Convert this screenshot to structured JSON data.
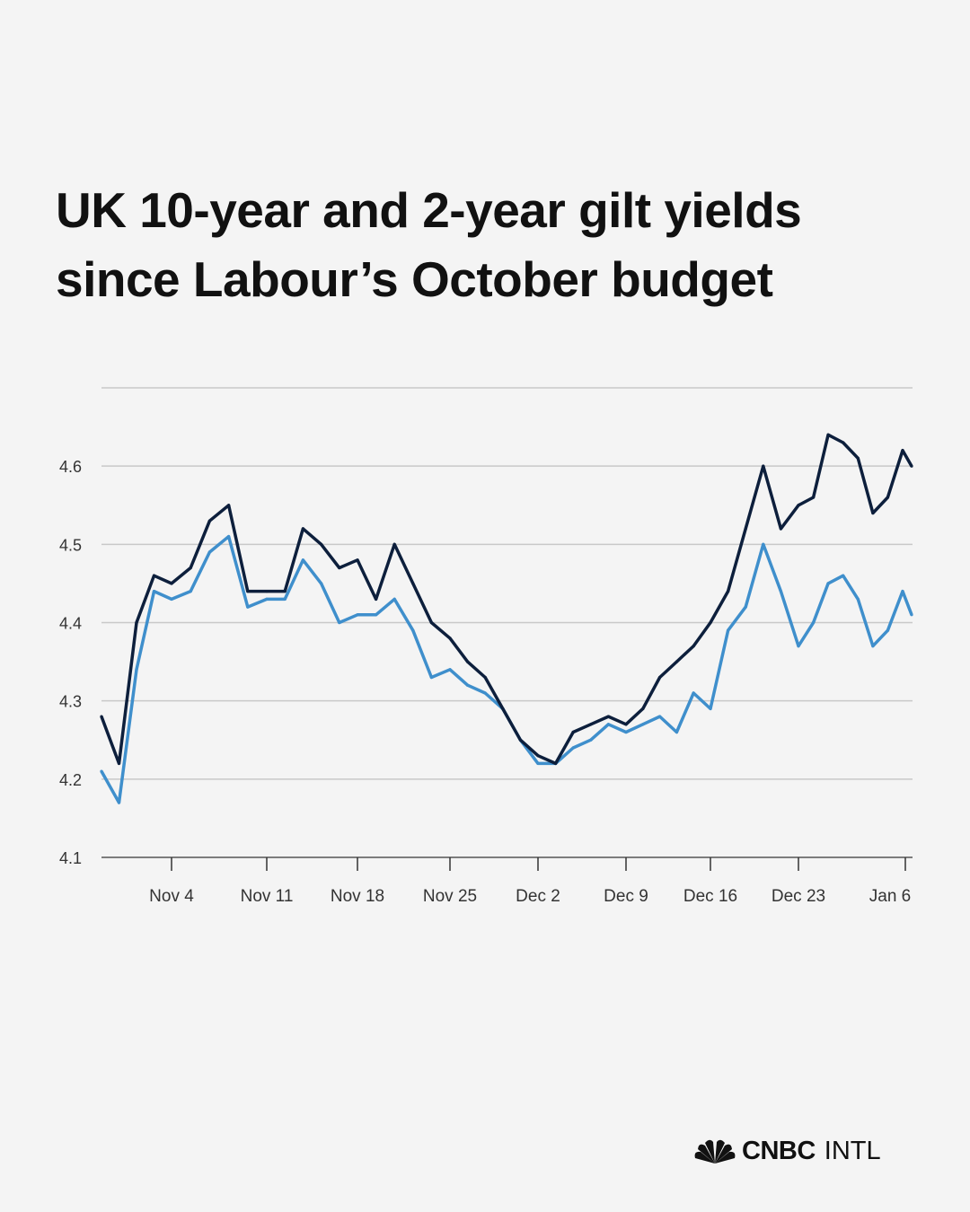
{
  "title": {
    "line1": "UK 10-year and 2-year gilt yields",
    "line2": "since Labour’s October budget"
  },
  "logo": {
    "brand": "CNBC",
    "suffix": "INTL",
    "icon": "peacock-icon"
  },
  "chart_data": {
    "type": "line",
    "title": "UK 10-year and 2-year gilt yields since Labour’s October budget",
    "xlabel": "",
    "ylabel": "",
    "ylim": [
      4.1,
      4.7
    ],
    "yticks": [
      4.1,
      4.2,
      4.3,
      4.4,
      4.5,
      4.6,
      4.7
    ],
    "ytick_labels": [
      "4.1",
      "4.2",
      "4.3",
      "4.4",
      "4.5",
      "4.6",
      ""
    ],
    "grid": true,
    "legend": "none",
    "xtick_labels": [
      "Nov 4",
      "Nov 11",
      "Nov 18",
      "Nov 25",
      "Dec 2",
      "Dec 9",
      "Dec 16",
      "Dec 23",
      "Jan 6"
    ],
    "x": [
      "Oct 29",
      "Oct 30",
      "Oct 31",
      "Nov 1",
      "Nov 4",
      "Nov 5",
      "Nov 6",
      "Nov 7",
      "Nov 8",
      "Nov 11",
      "Nov 12",
      "Nov 13",
      "Nov 14",
      "Nov 15",
      "Nov 18",
      "Nov 19",
      "Nov 20",
      "Nov 21",
      "Nov 22",
      "Nov 25",
      "Nov 26",
      "Nov 27",
      "Nov 28",
      "Nov 29",
      "Dec 2",
      "Dec 3",
      "Dec 4",
      "Dec 5",
      "Dec 6",
      "Dec 9",
      "Dec 10",
      "Dec 11",
      "Dec 12",
      "Dec 13",
      "Dec 16",
      "Dec 17",
      "Dec 18",
      "Dec 19",
      "Dec 20",
      "Dec 23",
      "Dec 24",
      "Dec 27",
      "Dec 30",
      "Dec 31",
      "Jan 2",
      "Jan 3",
      "Jan 6",
      "Jan 7"
    ],
    "series": [
      {
        "color": "#3f8fcc",
        "values": [
          4.21,
          4.17,
          4.34,
          4.44,
          4.43,
          4.44,
          4.49,
          4.51,
          4.42,
          4.43,
          4.43,
          4.48,
          4.45,
          4.4,
          4.41,
          4.41,
          4.43,
          4.39,
          4.33,
          4.34,
          4.32,
          4.31,
          4.29,
          4.25,
          4.22,
          4.22,
          4.24,
          4.25,
          4.27,
          4.26,
          4.27,
          4.28,
          4.26,
          4.31,
          4.29,
          4.39,
          4.42,
          4.5,
          4.44,
          4.37,
          4.4,
          4.45,
          4.46,
          4.43,
          4.37,
          4.39,
          4.44,
          4.41
        ]
      },
      {
        "color": "#0d1f3c",
        "values": [
          4.28,
          4.22,
          4.4,
          4.46,
          4.45,
          4.47,
          4.53,
          4.55,
          4.44,
          4.44,
          4.44,
          4.52,
          4.5,
          4.47,
          4.48,
          4.43,
          4.5,
          4.45,
          4.4,
          4.38,
          4.35,
          4.33,
          4.29,
          4.25,
          4.23,
          4.22,
          4.26,
          4.27,
          4.28,
          4.27,
          4.29,
          4.33,
          4.35,
          4.37,
          4.4,
          4.44,
          4.52,
          4.6,
          4.52,
          4.55,
          4.56,
          4.64,
          4.63,
          4.61,
          4.54,
          4.56,
          4.62,
          4.6
        ]
      }
    ]
  }
}
